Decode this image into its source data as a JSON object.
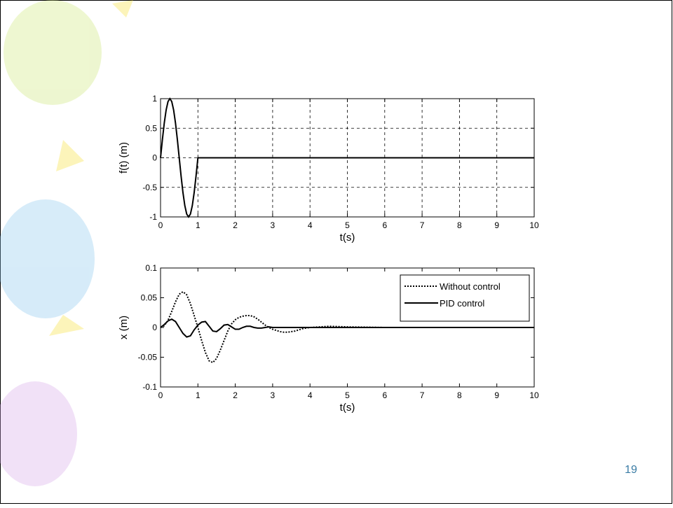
{
  "chart_data": [
    {
      "type": "line",
      "ylabel": "f(t) (m)",
      "xlabel": "t(s)",
      "x": [
        0,
        0.05,
        0.1,
        0.15,
        0.2,
        0.25,
        0.3,
        0.35,
        0.4,
        0.45,
        0.5,
        0.55,
        0.6,
        0.65,
        0.7,
        0.75,
        0.8,
        0.85,
        0.9,
        0.95,
        1,
        10
      ],
      "values": [
        0,
        0.309,
        0.588,
        0.809,
        0.951,
        1,
        0.951,
        0.809,
        0.588,
        0.309,
        0,
        -0.309,
        -0.588,
        -0.809,
        -0.951,
        -1,
        -0.951,
        -0.809,
        -0.588,
        -0.309,
        0,
        0
      ],
      "color": "#000000",
      "xlim": [
        0,
        10
      ],
      "xticks": [
        0,
        1,
        2,
        3,
        4,
        5,
        6,
        7,
        8,
        9,
        10
      ],
      "ylim": [
        -1,
        1
      ],
      "yticks": [
        -1,
        -0.5,
        0,
        0.5,
        1
      ],
      "grid": true
    },
    {
      "type": "line",
      "ylabel": "x (m)",
      "xlabel": "t(s)",
      "x": [
        0,
        0.1,
        0.2,
        0.3,
        0.4,
        0.5,
        0.6,
        0.7,
        0.8,
        0.9,
        1,
        1.1,
        1.2,
        1.3,
        1.4,
        1.5,
        1.6,
        1.7,
        1.8,
        1.9,
        2,
        2.1,
        2.2,
        2.3,
        2.4,
        2.5,
        2.6,
        2.7,
        2.8,
        2.9,
        3,
        3.1,
        3.2,
        3.3,
        3.4,
        3.5,
        3.6,
        3.7,
        3.8,
        3.9,
        4,
        4.5,
        5,
        6,
        10
      ],
      "series": [
        {
          "name": "Without control",
          "color": "#000000",
          "line_style": "dotted",
          "values": [
            0,
            0.003,
            0.012,
            0.027,
            0.043,
            0.056,
            0.06,
            0.055,
            0.04,
            0.02,
            0,
            -0.022,
            -0.042,
            -0.056,
            -0.059,
            -0.052,
            -0.038,
            -0.022,
            -0.006,
            0.006,
            0.013,
            0.017,
            0.019,
            0.02,
            0.02,
            0.018,
            0.014,
            0.009,
            0.004,
            0,
            -0.003,
            -0.005,
            -0.007,
            -0.008,
            -0.008,
            -0.007,
            -0.006,
            -0.004,
            -0.002,
            -0.001,
            0,
            0.002,
            0.001,
            0,
            0
          ]
        },
        {
          "name": "PID control",
          "color": "#000000",
          "line_style": "solid",
          "values": [
            0,
            0.005,
            0.011,
            0.014,
            0.01,
            0,
            -0.01,
            -0.016,
            -0.014,
            -0.004,
            0.004,
            0.009,
            0.01,
            0.002,
            -0.006,
            -0.007,
            -0.002,
            0.004,
            0.005,
            0.001,
            -0.003,
            -0.003,
            0,
            0.002,
            0.002,
            0,
            -0.001,
            -0.001,
            0,
            0.001,
            0,
            0,
            0,
            0,
            0,
            0,
            0,
            0,
            0,
            0,
            0,
            0,
            0,
            0,
            0
          ]
        }
      ],
      "legend": "upper right",
      "xlim": [
        0,
        10
      ],
      "xticks": [
        0,
        1,
        2,
        3,
        4,
        5,
        6,
        7,
        8,
        9,
        10
      ],
      "ylim": [
        -0.1,
        0.1
      ],
      "yticks": [
        -0.1,
        -0.05,
        0,
        0.05,
        0.1
      ],
      "grid": false
    }
  ],
  "page_number": "19"
}
